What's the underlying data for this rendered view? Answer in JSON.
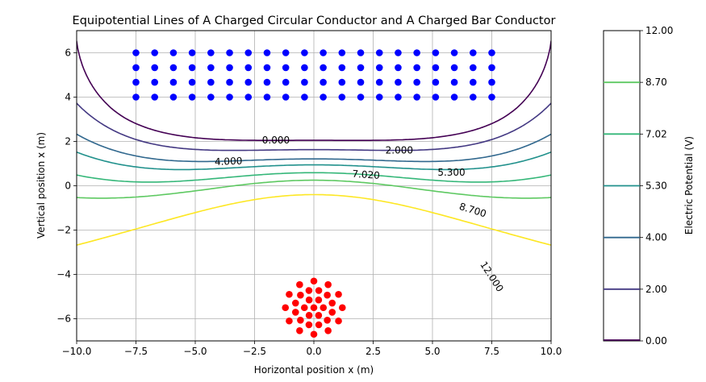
{
  "chart_data": {
    "type": "contour",
    "title": "Equipotential Lines of A Charged Circular Conductor and A Charged Bar Conductor",
    "xlabel": "Horizontal position x (m)",
    "ylabel": "Vertical position x (m)",
    "xlim": [
      -10,
      10
    ],
    "ylim": [
      -7,
      7
    ],
    "xticks": [
      "−10.0",
      "−7.5",
      "−5.0",
      "−2.5",
      "0.0",
      "2.5",
      "5.0",
      "7.5",
      "10.0"
    ],
    "xtick_values": [
      -10,
      -7.5,
      -5,
      -2.5,
      0,
      2.5,
      5,
      7.5,
      10
    ],
    "yticks": [
      "−6",
      "−4",
      "−2",
      "0",
      "2",
      "4",
      "6"
    ],
    "ytick_values": [
      -6,
      -4,
      -2,
      0,
      2,
      4,
      6
    ],
    "grid": true,
    "levels": [
      0.0,
      2.0,
      4.0,
      5.3,
      7.02,
      8.7,
      12.0
    ],
    "level_labels": [
      "0.000",
      "2.000",
      "4.000",
      "5.300",
      "7.020",
      "8.700",
      "12.000"
    ],
    "level_colors": [
      "#440154",
      "#443983",
      "#31688e",
      "#21918c",
      "#35b779",
      "#5ec962",
      "#fde725"
    ],
    "contour_labels": [
      {
        "text": "0.000",
        "x": -1.6,
        "y": 2.05,
        "angle": 0
      },
      {
        "text": "2.000",
        "x": 3.6,
        "y": 1.6,
        "angle": 0
      },
      {
        "text": "4.000",
        "x": -3.6,
        "y": 1.1,
        "angle": -2
      },
      {
        "text": "5.300",
        "x": 5.8,
        "y": 0.6,
        "angle": 0
      },
      {
        "text": "7.020",
        "x": 2.2,
        "y": 0.5,
        "angle": 4
      },
      {
        "text": "8.700",
        "x": 6.7,
        "y": -1.1,
        "angle": 17
      },
      {
        "text": "12.000",
        "x": 7.5,
        "y": -4.1,
        "angle": 57
      }
    ],
    "bar_conductor": {
      "color": "#0000ff",
      "x_start": -7.5,
      "x_end": 7.5,
      "x_count": 20,
      "y_values": [
        4,
        4.67,
        5.33,
        6
      ]
    },
    "circular_conductor": {
      "color": "#ff0000",
      "center": [
        0,
        -5.5
      ],
      "radius": 1.2,
      "rings": [
        {
          "r": 0.0,
          "n": 1,
          "phase": 0
        },
        {
          "r": 0.4,
          "n": 6,
          "phase": 0
        },
        {
          "r": 0.8,
          "n": 12,
          "phase": 15
        },
        {
          "r": 1.2,
          "n": 12,
          "phase": 0
        }
      ]
    },
    "colorbar": {
      "label": "Electric Potential (V)",
      "ticks": [
        "0.00",
        "2.00",
        "4.00",
        "5.30",
        "7.02",
        "8.70",
        "12.00"
      ]
    }
  }
}
